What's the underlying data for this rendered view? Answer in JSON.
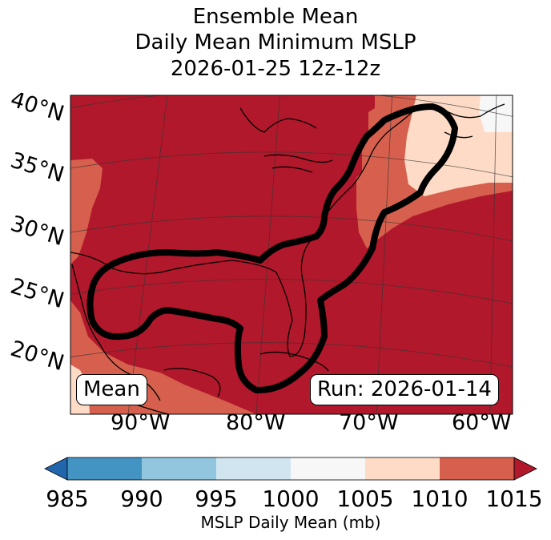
{
  "title": {
    "line1": "Ensemble Mean",
    "line2": "Daily Mean Minimum MSLP",
    "line3": "2026-01-25 12z-12z"
  },
  "map": {
    "lat_labels": [
      "40°N",
      "35°N",
      "30°N",
      "25°N",
      "20°N"
    ],
    "lon_labels": [
      "90°W",
      "80°W",
      "70°W",
      "60°W"
    ],
    "mean_box": "Mean",
    "run_box": "Run: 2026-01-14"
  },
  "colorbar": {
    "ticks": [
      "985",
      "990",
      "995",
      "1000",
      "1005",
      "1010",
      "1015"
    ],
    "label": "MSLP Daily Mean (mb)",
    "colors": {
      "under": "#2166ac",
      "c985_990": "#4393c3",
      "c990_995": "#92c5de",
      "c995_1000": "#d1e5f0",
      "c1000_1005": "#f7f7f7",
      "c1005_1010": "#fddbc7",
      "c1010_1015": "#d6604d",
      "over": "#b2182b"
    }
  }
}
